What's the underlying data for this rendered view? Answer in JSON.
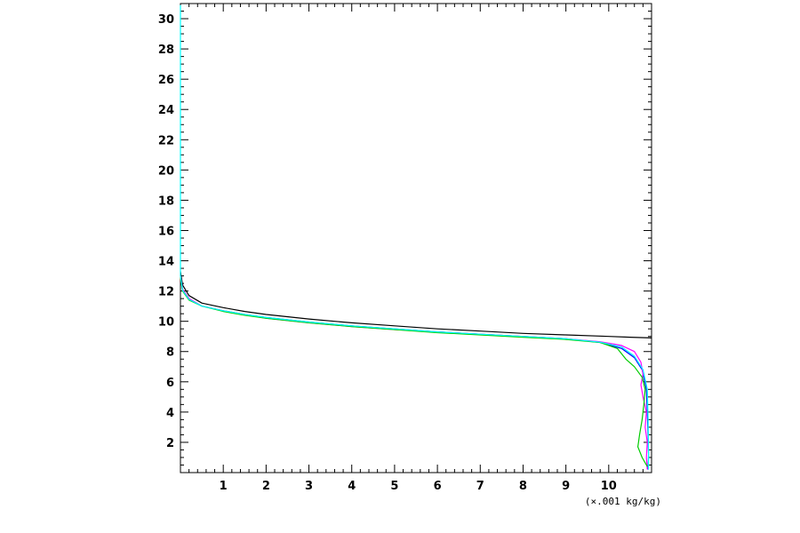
{
  "chart_data": {
    "type": "line",
    "title": "",
    "xlabel": "(×.001 kg/kg)",
    "ylabel": "",
    "xlim": [
      0,
      11
    ],
    "ylim": [
      0,
      31
    ],
    "grid": false,
    "x_ticks": [
      1,
      2,
      3,
      4,
      5,
      6,
      7,
      8,
      9,
      10
    ],
    "y_ticks": [
      2,
      4,
      6,
      8,
      10,
      12,
      14,
      16,
      18,
      20,
      22,
      24,
      26,
      28,
      30
    ],
    "series": [
      {
        "color": "#000000",
        "points": [
          [
            0,
            13.3
          ],
          [
            0.05,
            12.4
          ],
          [
            0.2,
            11.7
          ],
          [
            0.5,
            11.2
          ],
          [
            1,
            10.9
          ],
          [
            1.5,
            10.65
          ],
          [
            2,
            10.45
          ],
          [
            3,
            10.15
          ],
          [
            4,
            9.9
          ],
          [
            5,
            9.7
          ],
          [
            6,
            9.5
          ],
          [
            7,
            9.35
          ],
          [
            8,
            9.2
          ],
          [
            9,
            9.1
          ],
          [
            10,
            9.0
          ],
          [
            10.5,
            8.95
          ],
          [
            11,
            8.9
          ]
        ]
      },
      {
        "color": "#0000ff",
        "points": [
          [
            0,
            13.0
          ],
          [
            0.05,
            12.1
          ],
          [
            0.2,
            11.5
          ],
          [
            0.5,
            11.0
          ],
          [
            1,
            10.7
          ],
          [
            1.5,
            10.45
          ],
          [
            2,
            10.25
          ],
          [
            3,
            9.95
          ],
          [
            4,
            9.7
          ],
          [
            5,
            9.5
          ],
          [
            6,
            9.3
          ],
          [
            7,
            9.15
          ],
          [
            8,
            9.0
          ],
          [
            9,
            8.85
          ],
          [
            9.8,
            8.6
          ],
          [
            10.3,
            8.2
          ],
          [
            10.6,
            7.6
          ],
          [
            10.78,
            6.8
          ],
          [
            10.88,
            5.5
          ],
          [
            10.9,
            4.0
          ],
          [
            10.92,
            2.5
          ],
          [
            10.93,
            1.2
          ],
          [
            10.92,
            0.2
          ]
        ]
      },
      {
        "color": "#ff00ff",
        "points": [
          [
            0,
            13.0
          ],
          [
            0.05,
            12.1
          ],
          [
            0.2,
            11.5
          ],
          [
            0.5,
            11.0
          ],
          [
            1,
            10.7
          ],
          [
            1.5,
            10.45
          ],
          [
            2,
            10.2
          ],
          [
            3,
            9.9
          ],
          [
            4,
            9.65
          ],
          [
            5,
            9.45
          ],
          [
            6,
            9.3
          ],
          [
            7,
            9.15
          ],
          [
            8,
            9.0
          ],
          [
            9,
            8.85
          ],
          [
            9.8,
            8.65
          ],
          [
            10.3,
            8.4
          ],
          [
            10.6,
            8.0
          ],
          [
            10.75,
            7.3
          ],
          [
            10.8,
            6.5
          ],
          [
            10.75,
            5.8
          ],
          [
            10.8,
            5.0
          ],
          [
            10.88,
            4.0
          ],
          [
            10.85,
            3.0
          ],
          [
            10.9,
            2.0
          ],
          [
            10.88,
            1.0
          ],
          [
            10.9,
            0.2
          ]
        ]
      },
      {
        "color": "#00cc00",
        "points": [
          [
            0,
            12.9
          ],
          [
            0.05,
            12.0
          ],
          [
            0.2,
            11.4
          ],
          [
            0.5,
            11.0
          ],
          [
            1,
            10.65
          ],
          [
            1.5,
            10.4
          ],
          [
            2,
            10.2
          ],
          [
            3,
            9.9
          ],
          [
            4,
            9.65
          ],
          [
            5,
            9.45
          ],
          [
            6,
            9.25
          ],
          [
            7,
            9.1
          ],
          [
            8,
            8.95
          ],
          [
            9,
            8.8
          ],
          [
            9.8,
            8.6
          ],
          [
            10.2,
            8.2
          ],
          [
            10.4,
            7.5
          ],
          [
            10.6,
            7.0
          ],
          [
            10.78,
            6.3
          ],
          [
            10.85,
            5.5
          ],
          [
            10.82,
            4.5
          ],
          [
            10.78,
            3.5
          ],
          [
            10.72,
            2.5
          ],
          [
            10.68,
            1.7
          ],
          [
            10.78,
            1.0
          ],
          [
            10.9,
            0.4
          ]
        ]
      },
      {
        "color": "#00ffff",
        "points": [
          [
            0,
            30.9
          ],
          [
            0,
            13.0
          ],
          [
            0.05,
            12.05
          ],
          [
            0.2,
            11.45
          ],
          [
            0.5,
            11.0
          ],
          [
            1,
            10.7
          ],
          [
            1.5,
            10.45
          ],
          [
            2,
            10.25
          ],
          [
            3,
            9.95
          ],
          [
            4,
            9.7
          ],
          [
            5,
            9.5
          ],
          [
            6,
            9.3
          ],
          [
            7,
            9.15
          ],
          [
            8,
            9.0
          ],
          [
            9,
            8.85
          ],
          [
            9.8,
            8.62
          ],
          [
            10.3,
            8.3
          ],
          [
            10.6,
            7.7
          ],
          [
            10.8,
            6.8
          ],
          [
            10.9,
            5.5
          ],
          [
            10.92,
            3.5
          ],
          [
            10.93,
            1.5
          ],
          [
            10.93,
            0.2
          ]
        ]
      }
    ]
  }
}
